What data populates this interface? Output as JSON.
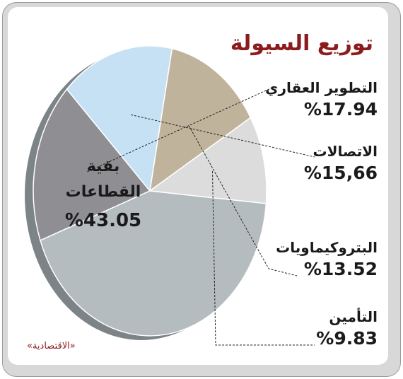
{
  "title": "توزيع السيولة",
  "source": "«الاقتصادية»",
  "chart_data": {
    "type": "pie",
    "title": "توزيع السيولة",
    "slices": [
      {
        "label": "التطوير العقاري",
        "value": 17.94,
        "display": "%17.94",
        "color": "#8f8f93"
      },
      {
        "label": "الاتصالات",
        "value": 15.66,
        "display": "%15,66",
        "color": "#c6e1f4"
      },
      {
        "label": "البتروكيماويات",
        "value": 13.52,
        "display": "%13.52",
        "color": "#c0b39b"
      },
      {
        "label": "التأمين",
        "value": 9.83,
        "display": "%9.83",
        "color": "#dcdcdc"
      },
      {
        "label_line1": "بقية",
        "label_line2": "القطاعات",
        "value": 43.05,
        "display": "%43.05",
        "color": "#b5bcc0"
      }
    ]
  }
}
